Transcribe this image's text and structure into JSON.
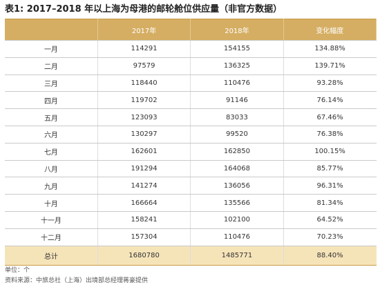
{
  "title": "表1: 2017–2018 年以上海为母港的邮轮舱位供应量（非官方数据）",
  "table": {
    "header": [
      "",
      "2017年",
      "2018年",
      "变化幅度"
    ],
    "rows": [
      [
        "一月",
        "114291",
        "154155",
        "134.88%"
      ],
      [
        "二月",
        "97579",
        "136325",
        "139.71%"
      ],
      [
        "三月",
        "118440",
        "110476",
        "93.28%"
      ],
      [
        "四月",
        "119702",
        "91146",
        "76.14%"
      ],
      [
        "五月",
        "123093",
        "83033",
        "67.46%"
      ],
      [
        "六月",
        "130297",
        "99520",
        "76.38%"
      ],
      [
        "七月",
        "162601",
        "162850",
        "100.15%"
      ],
      [
        "八月",
        "191294",
        "164068",
        "85.77%"
      ],
      [
        "九月",
        "141274",
        "136056",
        "96.31%"
      ],
      [
        "十月",
        "166664",
        "135566",
        "81.34%"
      ],
      [
        "十一月",
        "158241",
        "102100",
        "64.52%"
      ],
      [
        "十二月",
        "157304",
        "110476",
        "70.23%"
      ]
    ],
    "total": [
      "总计",
      "1680780",
      "1485771",
      "88.40%"
    ]
  },
  "notes": [
    "单位：个",
    "资料来源：中旅总社（上海）出境部总经理蒋豪提供"
  ]
}
